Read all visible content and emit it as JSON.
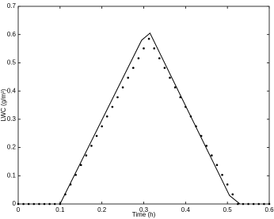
{
  "chart_data": {
    "type": "line",
    "xlabel": "Time (h)",
    "ylabel": "LWC (g/m³)",
    "xlim": [
      0,
      0.6
    ],
    "ylim": [
      0,
      0.7
    ],
    "xticks": [
      0,
      0.1,
      0.2,
      0.3,
      0.4,
      0.5,
      0.6
    ],
    "yticks": [
      0,
      0.1,
      0.2,
      0.3,
      0.4,
      0.5,
      0.6,
      0.7
    ],
    "series": [
      {
        "style": "line",
        "color": "#000000",
        "x": [
          0.1,
          0.295,
          0.315,
          0.505,
          0.53
        ],
        "values": [
          0,
          0.58,
          0.605,
          0.03,
          0
        ]
      },
      {
        "style": "scatter",
        "color": "#000000",
        "x": [
          0,
          0.0125,
          0.025,
          0.0375,
          0.05,
          0.0625,
          0.075,
          0.0875,
          0.1,
          0.1125,
          0.125,
          0.1375,
          0.15,
          0.1625,
          0.175,
          0.1875,
          0.2,
          0.2125,
          0.225,
          0.2375,
          0.25,
          0.2625,
          0.275,
          0.2875,
          0.3,
          0.3125,
          0.325,
          0.3375,
          0.35,
          0.3625,
          0.375,
          0.3875,
          0.4,
          0.4125,
          0.425,
          0.4375,
          0.45,
          0.4625,
          0.475,
          0.4875,
          0.5,
          0.5125,
          0.525,
          0.5375,
          0.55,
          0.5625,
          0.575,
          0.5875,
          0.6
        ],
        "values": [
          0,
          0,
          0,
          0,
          0,
          0,
          0,
          0,
          0,
          0.034,
          0.069,
          0.103,
          0.138,
          0.172,
          0.206,
          0.241,
          0.275,
          0.31,
          0.344,
          0.378,
          0.413,
          0.447,
          0.482,
          0.516,
          0.551,
          0.585,
          0.551,
          0.516,
          0.482,
          0.447,
          0.413,
          0.378,
          0.344,
          0.31,
          0.275,
          0.241,
          0.206,
          0.172,
          0.138,
          0.103,
          0.069,
          0.034,
          0,
          0,
          0,
          0,
          0,
          0,
          0
        ]
      }
    ]
  }
}
